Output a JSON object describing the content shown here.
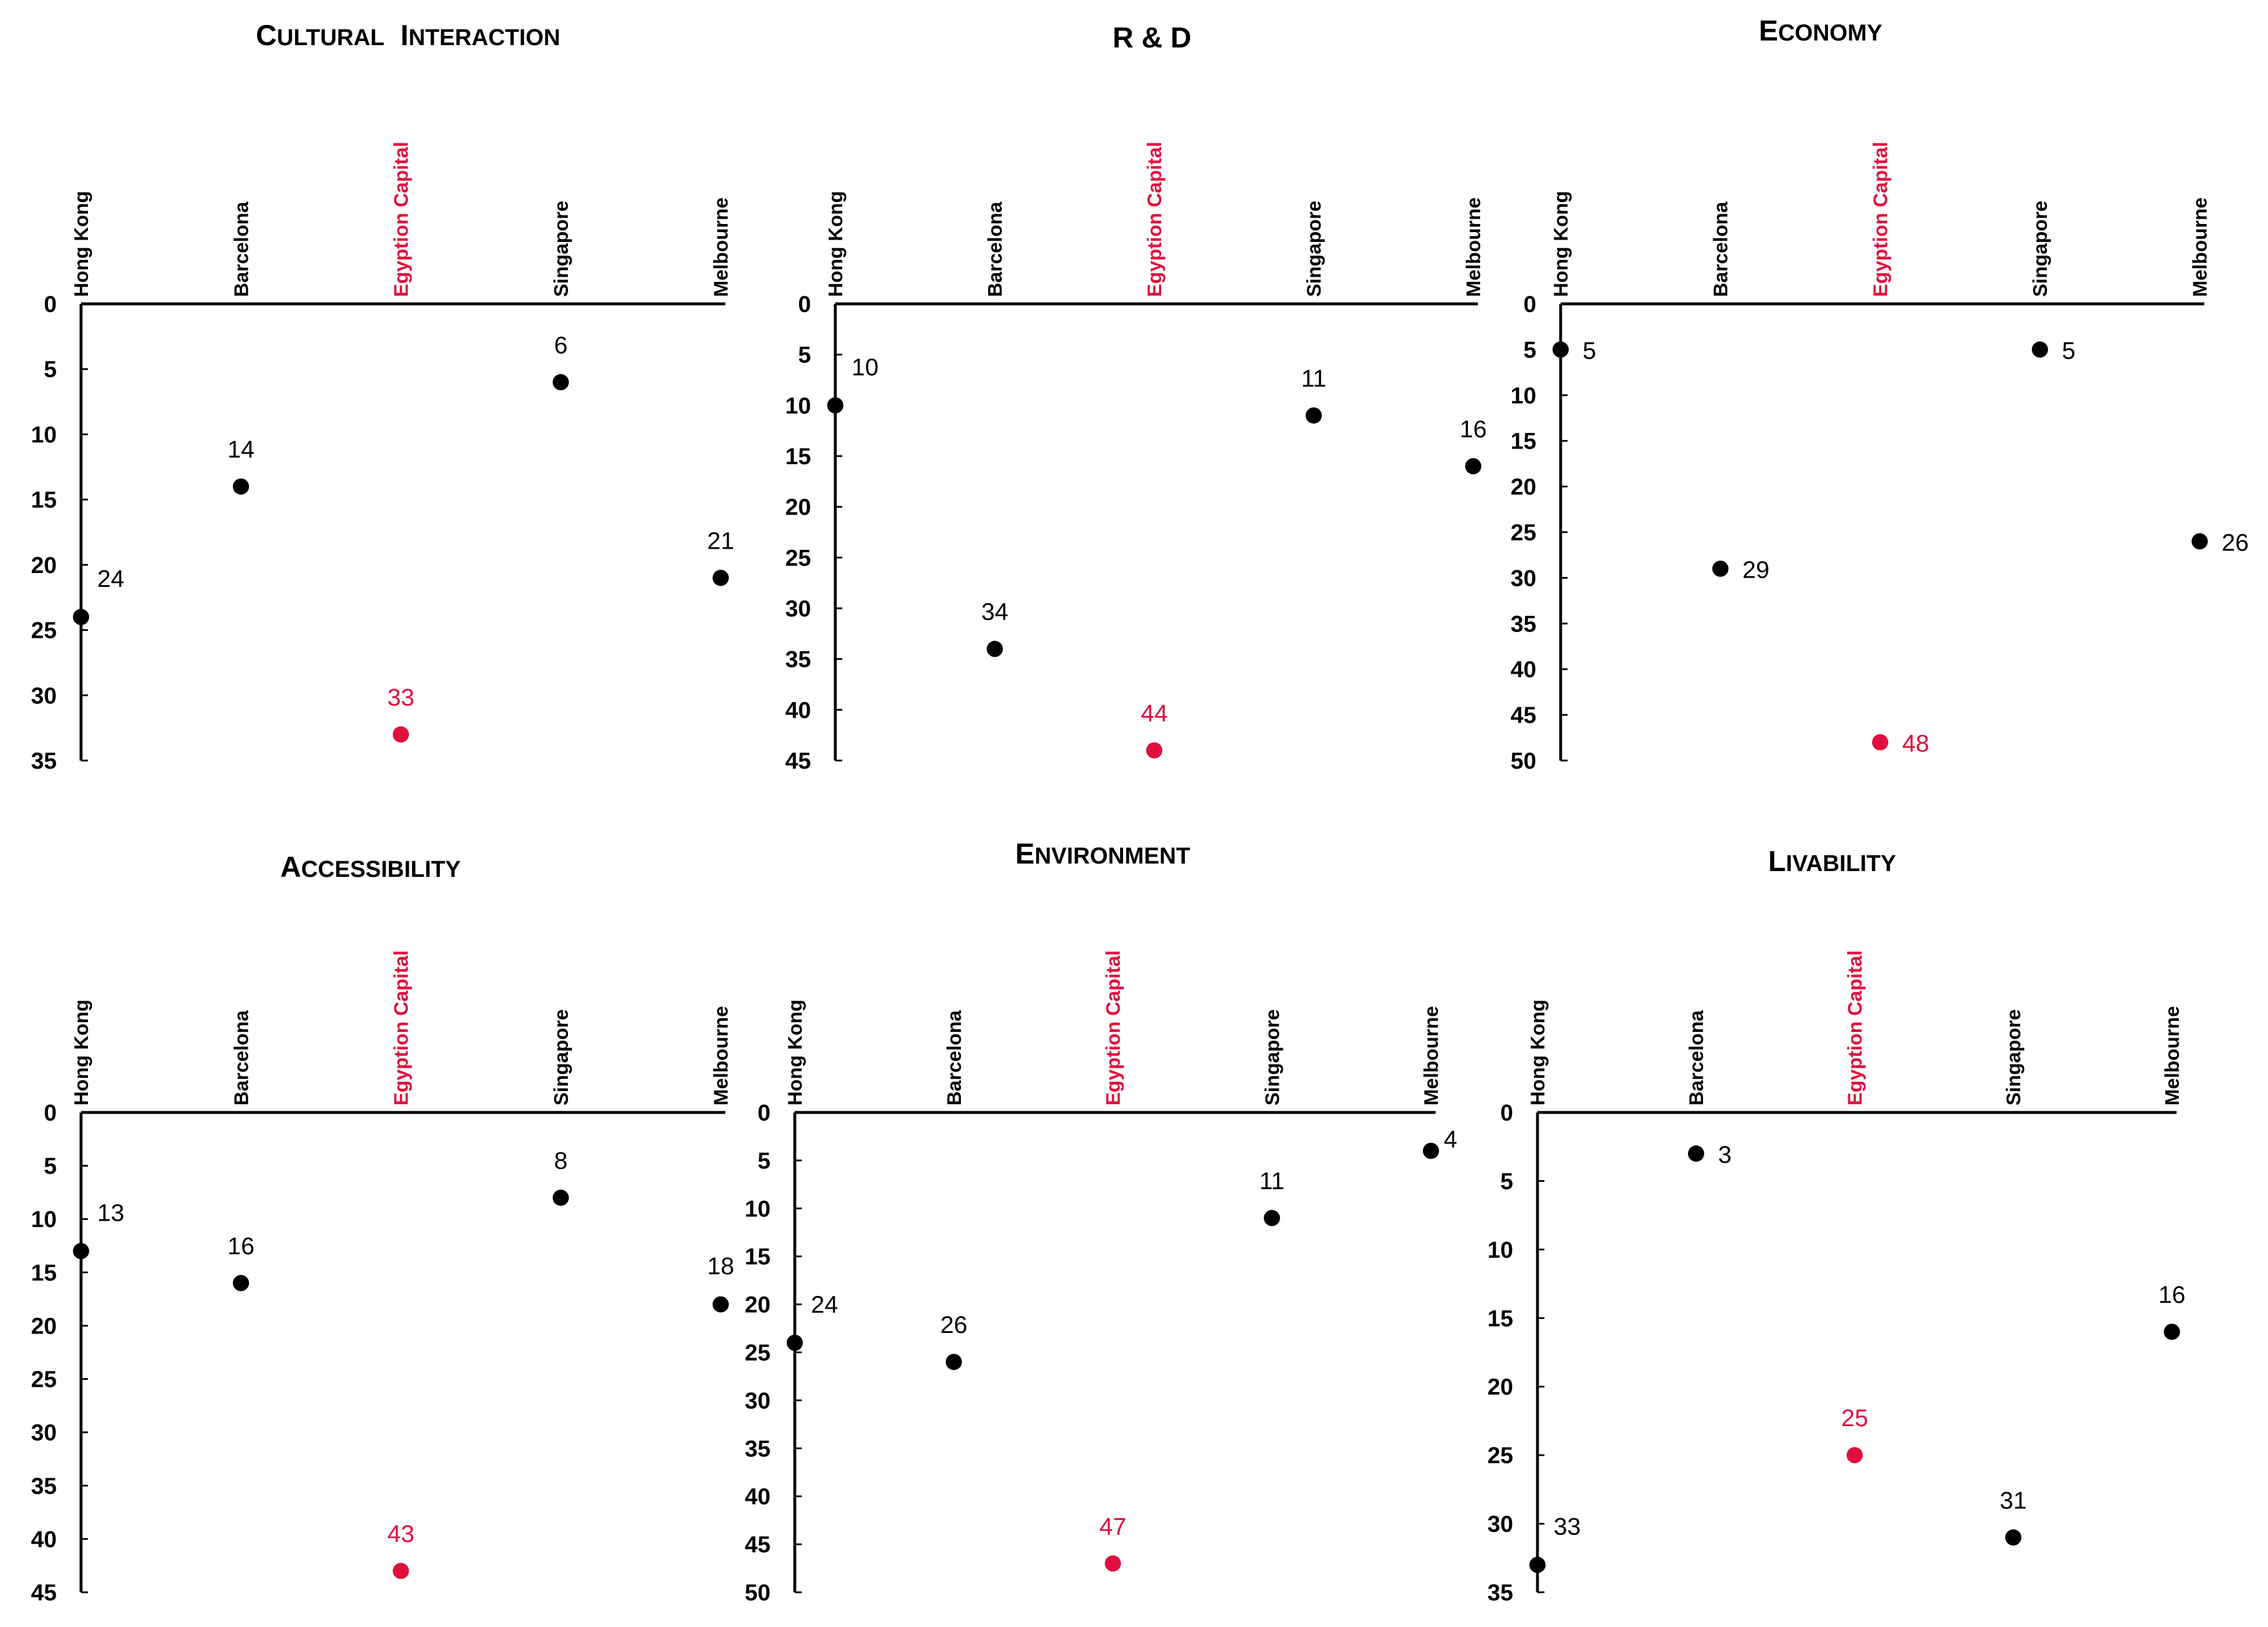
{
  "colors": {
    "default": "#000000",
    "highlight": "#e0103e"
  },
  "chart_data": [
    {
      "type": "scatter",
      "title": "CULTURAL INTERACTION",
      "categories": [
        "Hong Kong",
        "Barcelona",
        "Egyption Capital",
        "Singapore",
        "Melbourne"
      ],
      "highlight": "Egyption Capital",
      "y_axis": "rank (inverted)",
      "ylim": [
        0,
        35
      ],
      "yticks": [
        0,
        5,
        10,
        15,
        20,
        25,
        30,
        35
      ],
      "values": [
        24,
        14,
        33,
        6,
        21
      ]
    },
    {
      "type": "scatter",
      "title": "R & D",
      "categories": [
        "Hong Kong",
        "Barcelona",
        "Egyption Capital",
        "Singapore",
        "Melbourne"
      ],
      "highlight": "Egyption Capital",
      "y_axis": "rank (inverted)",
      "ylim": [
        0,
        45
      ],
      "yticks": [
        0,
        5,
        10,
        15,
        20,
        25,
        30,
        35,
        40,
        45
      ],
      "values": [
        10,
        34,
        44,
        11,
        16
      ]
    },
    {
      "type": "scatter",
      "title": "ECONOMY",
      "categories": [
        "Hong Kong",
        "Barcelona",
        "Egyption Capital",
        "Singapore",
        "Melbourne"
      ],
      "highlight": "Egyption Capital",
      "y_axis": "rank (inverted)",
      "ylim": [
        0,
        50
      ],
      "yticks": [
        0,
        5,
        10,
        15,
        20,
        25,
        30,
        35,
        40,
        45,
        50
      ],
      "values": [
        5,
        29,
        48,
        5,
        26
      ]
    },
    {
      "type": "scatter",
      "title": "ACCESSIBILITY",
      "categories": [
        "Hong Kong",
        "Barcelona",
        "Egyption Capital",
        "Singapore",
        "Melbourne"
      ],
      "highlight": "Egyption Capital",
      "y_axis": "rank (inverted)",
      "ylim": [
        0,
        45
      ],
      "yticks": [
        0,
        5,
        10,
        15,
        20,
        25,
        30,
        35,
        40,
        45
      ],
      "values": [
        13,
        16,
        43,
        8,
        18
      ]
    },
    {
      "type": "scatter",
      "title": "ENVIRONMENT",
      "categories": [
        "Hong Kong",
        "Barcelona",
        "Egyption Capital",
        "Singapore",
        "Melbourne"
      ],
      "highlight": "Egyption Capital",
      "y_axis": "rank (inverted)",
      "ylim": [
        0,
        50
      ],
      "yticks": [
        0,
        5,
        10,
        15,
        20,
        25,
        30,
        35,
        40,
        45,
        50
      ],
      "values": [
        24,
        26,
        47,
        11,
        4
      ]
    },
    {
      "type": "scatter",
      "title": "LIVABILITY",
      "categories": [
        "Hong Kong",
        "Barcelona",
        "Egyption Capital",
        "Singapore",
        "Melbourne"
      ],
      "highlight": "Egyption Capital",
      "y_axis": "rank (inverted)",
      "ylim": [
        0,
        35
      ],
      "yticks": [
        0,
        5,
        10,
        15,
        20,
        25,
        30,
        35
      ],
      "values": [
        33,
        3,
        25,
        31,
        16
      ]
    }
  ]
}
